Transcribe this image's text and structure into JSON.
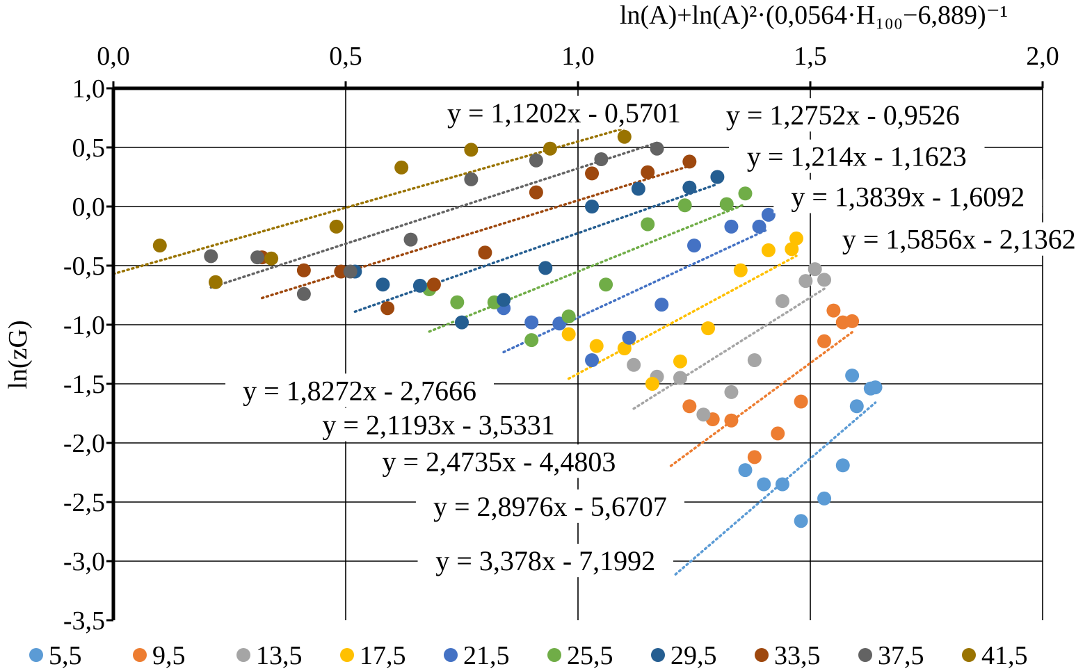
{
  "chart_data": {
    "type": "scatter",
    "xlabel": "ln(A)+ln(A)²·(0,0564·H₁₀₀−6,889)⁻¹",
    "ylabel": "ln(zG)",
    "xlim": [
      0,
      2
    ],
    "ylim": [
      -3.5,
      1
    ],
    "x_ticks": [
      "0,0",
      "0,5",
      "1,0",
      "1,5",
      "2,0"
    ],
    "y_ticks": [
      "1,0",
      "0,5",
      "0,0",
      "-0,5",
      "-1,0",
      "-1,5",
      "-2,0",
      "-2,5",
      "-3,0",
      "-3,5"
    ],
    "x_axis_position": "top",
    "grid": true,
    "legend_position": "bottom",
    "series": [
      {
        "name": "5,5",
        "color": "#5B9BD5",
        "points": [
          [
            1.36,
            -2.23
          ],
          [
            1.4,
            -2.35
          ],
          [
            1.44,
            -2.35
          ],
          [
            1.48,
            -2.66
          ],
          [
            1.53,
            -2.47
          ],
          [
            1.57,
            -2.19
          ],
          [
            1.59,
            -1.43
          ],
          [
            1.6,
            -1.69
          ],
          [
            1.63,
            -1.54
          ],
          [
            1.64,
            -1.53
          ]
        ],
        "trend": {
          "x": [
            1.21,
            1.64
          ],
          "slope": 3.378,
          "intercept": -7.1992,
          "equation": "y = 3,378x - 7,1992"
        }
      },
      {
        "name": "9,5",
        "color": "#ED7D31",
        "points": [
          [
            1.24,
            -1.69
          ],
          [
            1.29,
            -1.8
          ],
          [
            1.33,
            -1.81
          ],
          [
            1.38,
            -2.12
          ],
          [
            1.43,
            -1.92
          ],
          [
            1.48,
            -1.65
          ],
          [
            1.53,
            -1.14
          ],
          [
            1.55,
            -0.88
          ],
          [
            1.57,
            -0.98
          ],
          [
            1.59,
            -0.97
          ]
        ],
        "trend": {
          "x": [
            1.2,
            1.59
          ],
          "slope": 2.8976,
          "intercept": -5.6707,
          "equation": "y = 2,8976x - 5,6707"
        }
      },
      {
        "name": "13,5",
        "color": "#A5A5A5",
        "points": [
          [
            1.12,
            -1.34
          ],
          [
            1.17,
            -1.44
          ],
          [
            1.22,
            -1.45
          ],
          [
            1.27,
            -1.76
          ],
          [
            1.33,
            -1.57
          ],
          [
            1.38,
            -1.3
          ],
          [
            1.44,
            -0.8
          ],
          [
            1.49,
            -0.63
          ],
          [
            1.51,
            -0.53
          ],
          [
            1.53,
            -0.62
          ]
        ],
        "trend": {
          "x": [
            1.12,
            1.53
          ],
          "slope": 2.4735,
          "intercept": -4.4803,
          "equation": "y = 2,4735x - 4,4803"
        }
      },
      {
        "name": "17,5",
        "color": "#FFC000",
        "points": [
          [
            0.98,
            -1.08
          ],
          [
            1.04,
            -1.18
          ],
          [
            1.1,
            -1.2
          ],
          [
            1.16,
            -1.5
          ],
          [
            1.22,
            -1.31
          ],
          [
            1.28,
            -1.03
          ],
          [
            1.35,
            -0.54
          ],
          [
            1.41,
            -0.37
          ],
          [
            1.46,
            -0.36
          ],
          [
            1.47,
            -0.27
          ]
        ],
        "trend": {
          "x": [
            0.98,
            1.47
          ],
          "slope": 2.1193,
          "intercept": -3.5331,
          "equation": "y = 2,1193x - 3,5331"
        }
      },
      {
        "name": "21,5",
        "color": "#4472C4",
        "points": [
          [
            0.84,
            -0.86
          ],
          [
            0.9,
            -0.98
          ],
          [
            0.96,
            -0.99
          ],
          [
            1.03,
            -1.3
          ],
          [
            1.11,
            -1.11
          ],
          [
            1.18,
            -0.83
          ],
          [
            1.25,
            -0.33
          ],
          [
            1.33,
            -0.17
          ],
          [
            1.39,
            -0.17
          ],
          [
            1.41,
            -0.07
          ]
        ],
        "trend": {
          "x": [
            0.84,
            1.41
          ],
          "slope": 1.8272,
          "intercept": -2.7666,
          "equation": "y = 1,8272x - 2,7666"
        }
      },
      {
        "name": "25,5",
        "color": "#70AD47",
        "points": [
          [
            0.68,
            -0.7
          ],
          [
            0.74,
            -0.81
          ],
          [
            0.82,
            -0.81
          ],
          [
            0.9,
            -1.13
          ],
          [
            0.98,
            -0.93
          ],
          [
            1.06,
            -0.66
          ],
          [
            1.15,
            -0.15
          ],
          [
            1.23,
            0.01
          ],
          [
            1.32,
            0.02
          ],
          [
            1.36,
            0.11
          ]
        ],
        "trend": {
          "x": [
            0.68,
            1.36
          ],
          "slope": 1.5856,
          "intercept": -2.1362,
          "equation": "y = 1,5856x - 2,1362"
        }
      },
      {
        "name": "29,5",
        "color": "#255E91",
        "points": [
          [
            0.52,
            -0.55
          ],
          [
            0.58,
            -0.66
          ],
          [
            0.66,
            -0.67
          ],
          [
            0.75,
            -0.98
          ],
          [
            0.84,
            -0.79
          ],
          [
            0.93,
            -0.52
          ],
          [
            1.03,
            0.0
          ],
          [
            1.13,
            0.15
          ],
          [
            1.24,
            0.16
          ],
          [
            1.3,
            0.25
          ]
        ],
        "trend": {
          "x": [
            0.52,
            1.3
          ],
          "slope": 1.3839,
          "intercept": -1.6092,
          "equation": "y = 1,3839x - 1,6092"
        }
      },
      {
        "name": "33,5",
        "color": "#9E480E",
        "points": [
          [
            0.32,
            -0.43
          ],
          [
            0.41,
            -0.54
          ],
          [
            0.49,
            -0.55
          ],
          [
            0.59,
            -0.86
          ],
          [
            0.69,
            -0.66
          ],
          [
            0.8,
            -0.39
          ],
          [
            0.91,
            0.12
          ],
          [
            1.03,
            0.28
          ],
          [
            1.15,
            0.29
          ],
          [
            1.24,
            0.38
          ]
        ],
        "trend": {
          "x": [
            0.32,
            1.24
          ],
          "slope": 1.214,
          "intercept": -1.1623,
          "equation": "y = 1,214x - 1,1623"
        }
      },
      {
        "name": "37,5",
        "color": "#636363",
        "points": [
          [
            0.21,
            -0.42
          ],
          [
            0.31,
            -0.43
          ],
          [
            0.41,
            -0.74
          ],
          [
            0.51,
            -0.55
          ],
          [
            0.64,
            -0.28
          ],
          [
            0.77,
            0.23
          ],
          [
            0.91,
            0.39
          ],
          [
            1.05,
            0.4
          ],
          [
            1.17,
            0.49
          ]
        ],
        "trend": {
          "x": [
            0.21,
            1.17
          ],
          "slope": 1.2752,
          "intercept": -0.9526,
          "equation": "y = 1,2752x - 0,9526"
        }
      },
      {
        "name": "41,5",
        "color": "#997300",
        "points": [
          [
            0.1,
            -0.33
          ],
          [
            0.22,
            -0.64
          ],
          [
            0.34,
            -0.44
          ],
          [
            0.48,
            -0.17
          ],
          [
            0.62,
            0.33
          ],
          [
            0.77,
            0.48
          ],
          [
            0.94,
            0.49
          ],
          [
            1.1,
            0.59
          ]
        ],
        "trend": {
          "x": [
            0.0,
            1.1
          ],
          "slope": 1.1202,
          "intercept": -0.5701,
          "equation": "y = 1,1202x - 0,5701"
        }
      }
    ]
  }
}
